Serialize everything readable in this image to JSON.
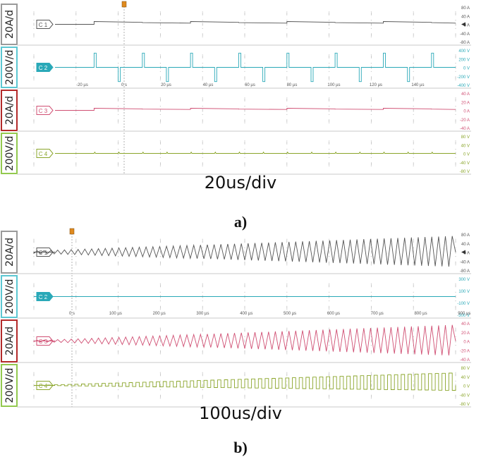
{
  "figure": {
    "panels": [
      {
        "id": "a",
        "caption": "a)",
        "timebase_label": "20us/div",
        "time_ticks": [
          "-20 µs",
          "0 s",
          "20 µs",
          "40 µs",
          "60 µs",
          "80 µs",
          "100 µs",
          "120 µs",
          "140 µs"
        ],
        "channels": [
          {
            "name": "C 1",
            "scale_label": "20A/d",
            "color": "#555555",
            "frame_color": "#9a9a9a",
            "ticks": [
              "80 A",
              "40 A",
              "0 A",
              "-40 A",
              "-80 A"
            ]
          },
          {
            "name": "C 2",
            "scale_label": "200V/d",
            "color": "#2aa9b8",
            "frame_color": "#5cc7d2",
            "ticks": [
              "400 V",
              "200 V",
              "0 V",
              "-200 V",
              "-400 V"
            ]
          },
          {
            "name": "C 3",
            "scale_label": "20A/d",
            "color": "#d04f73",
            "frame_color": "#b32a2a",
            "ticks": [
              "40 A",
              "20 A",
              "0 A",
              "-20 A",
              "-40 A"
            ]
          },
          {
            "name": "C 4",
            "scale_label": "200V/d",
            "color": "#8aa52a",
            "frame_color": "#93c94f",
            "ticks": [
              "80 V",
              "40 V",
              "0 V",
              "-40 V",
              "-80 V"
            ]
          }
        ]
      },
      {
        "id": "b",
        "caption": "b)",
        "timebase_label": "100us/div",
        "time_ticks": [
          "0 s",
          "100 µs",
          "200 µs",
          "300 µs",
          "400 µs",
          "500 µs",
          "600 µs",
          "700 µs",
          "800 µs",
          "900 µs"
        ],
        "channels": [
          {
            "name": "C 1",
            "scale_label": "20A/d",
            "color": "#555555",
            "frame_color": "#9a9a9a",
            "ticks": [
              "80 A",
              "40 A",
              "0 A",
              "-40 A",
              "-80 A"
            ]
          },
          {
            "name": "C 2",
            "scale_label": "200V/d",
            "color": "#2aa9b8",
            "frame_color": "#5cc7d2",
            "ticks": [
              "300 V",
              "100 V",
              "-100 V",
              "-300 V"
            ]
          },
          {
            "name": "C 3",
            "scale_label": "20A/d",
            "color": "#d04f73",
            "frame_color": "#b32a2a",
            "ticks": [
              "40 A",
              "20 A",
              "0 A",
              "-20 A",
              "-40 A"
            ]
          },
          {
            "name": "C 4",
            "scale_label": "200V/d",
            "color": "#8aa52a",
            "frame_color": "#93c94f",
            "ticks": [
              "80 V",
              "40 V",
              "0 V",
              "-40 V",
              "-80 V"
            ]
          }
        ]
      }
    ]
  },
  "chart_data": [
    {
      "type": "line",
      "panel": "a",
      "xlabel": "",
      "ylabel": "",
      "x_unit": "µs",
      "xlim": [
        -25,
        150
      ],
      "trigger_x": 0,
      "series": [
        {
          "name": "C 1",
          "kind": "stepped_current",
          "pre_trigger_level": 0,
          "step_height": 4,
          "step_period_us": 20,
          "peak_level": 6
        },
        {
          "name": "C 2",
          "kind": "voltage_pulses",
          "pulse_period_us": 10,
          "first_pulse_us": 0,
          "pulse_width_us": 0.8,
          "pulse_amplitude": 200
        },
        {
          "name": "C 3",
          "kind": "stepped_current",
          "pre_trigger_level": 0,
          "step_height": 3,
          "step_period_us": 20,
          "peak_level": 5
        },
        {
          "name": "C 4",
          "kind": "near_zero_with_spikes",
          "level": 0,
          "spike_period_us": 10,
          "spike_amplitude": 3
        }
      ]
    },
    {
      "type": "line",
      "panel": "b",
      "xlabel": "",
      "ylabel": "",
      "x_unit": "µs",
      "xlim": [
        0,
        900
      ],
      "trigger_x": 0,
      "series": [
        {
          "name": "C 1",
          "kind": "growing_oscillation",
          "cycles": 62,
          "amp_start": 2,
          "amp_end": 25
        },
        {
          "name": "C 2",
          "kind": "bipolar_pulses",
          "pulse_pairs": 62,
          "pulse_amplitude": 250
        },
        {
          "name": "C 3",
          "kind": "growing_oscillation",
          "cycles": 62,
          "amp_start": 1,
          "amp_end": 25
        },
        {
          "name": "C 4",
          "kind": "growing_square_ripple",
          "cycles": 62,
          "amp_start": 0,
          "amp_end": 32
        }
      ]
    }
  ]
}
